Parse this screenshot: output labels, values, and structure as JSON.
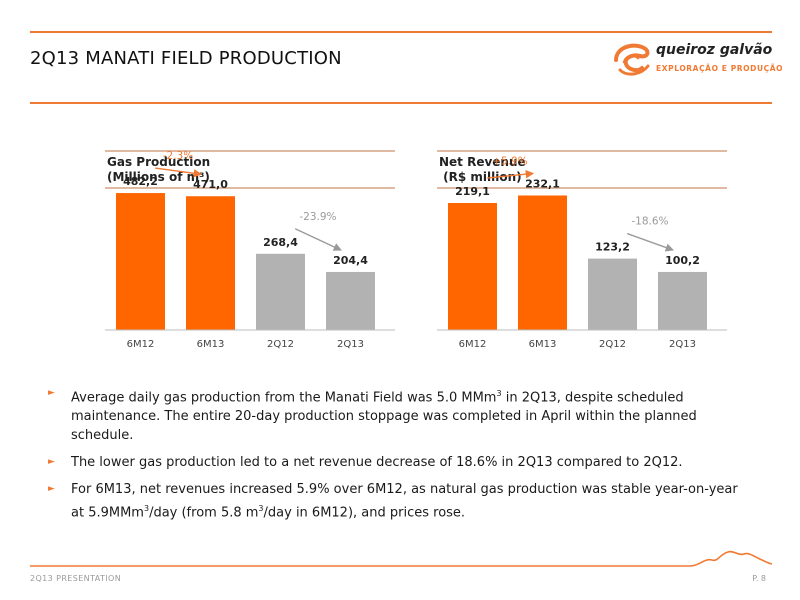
{
  "slide": {
    "title": "2Q13 MANATI FIELD PRODUCTION",
    "footer_left": "2Q13 PRESENTATION",
    "footer_right": "P. 8"
  },
  "logo": {
    "name": "queiroz galvão",
    "subtitle": "EXPLORAÇÃO E PRODUÇÃO"
  },
  "colors": {
    "accent": "#f07a33",
    "bar_orange": "#ff6600",
    "bar_grey": "#b2b2b2"
  },
  "chart_data": [
    {
      "type": "bar",
      "title": "Gas Production\n(Millions of m³)",
      "categories": [
        "6M12",
        "6M13",
        "2Q12",
        "2Q13"
      ],
      "values": [
        482.2,
        471.0,
        268.4,
        204.4
      ],
      "value_labels": [
        "482,2",
        "471,0",
        "268,4",
        "204,4"
      ],
      "bar_colors": [
        "#ff6600",
        "#ff6600",
        "#b2b2b2",
        "#b2b2b2"
      ],
      "annotations": [
        {
          "text": "-2.3%",
          "from": 0,
          "to": 1,
          "color": "#f07a33"
        },
        {
          "text": "-23.9%",
          "from": 2,
          "to": 3,
          "color": "#9a9a9a"
        }
      ],
      "ylim": [
        0,
        500
      ]
    },
    {
      "type": "bar",
      "title": "Net Revenue\n (R$ million)",
      "categories": [
        "6M12",
        "6M13",
        "2Q12",
        "2Q13"
      ],
      "values": [
        219.1,
        232.1,
        123.2,
        100.2
      ],
      "value_labels": [
        "219,1",
        "232,1",
        "123,2",
        "100,2"
      ],
      "bar_colors": [
        "#ff6600",
        "#ff6600",
        "#b2b2b2",
        "#b2b2b2"
      ],
      "annotations": [
        {
          "text": "+5.9%",
          "from": 0,
          "to": 1,
          "color": "#f07a33"
        },
        {
          "text": "-18.6%",
          "from": 2,
          "to": 3,
          "color": "#9a9a9a"
        }
      ],
      "ylim": [
        0,
        245
      ]
    }
  ],
  "bullets": [
    {
      "parts": [
        "Average daily gas production from the Manati Field was 5.0 MMm",
        "3",
        " in 2Q13, despite scheduled maintenance. The entire 20-day production stoppage was completed in April within the planned schedule."
      ]
    },
    {
      "parts": [
        "The lower gas production led to a net revenue decrease of 18.6% in 2Q13 compared to 2Q12."
      ]
    },
    {
      "parts": [
        "For 6M13, net revenues increased 5.9% over 6M12, as natural gas production was stable year-on-year at 5.9MMm",
        "3",
        "/day (from 5.8 m",
        "3",
        "/day in 6M12), and prices rose."
      ]
    }
  ]
}
